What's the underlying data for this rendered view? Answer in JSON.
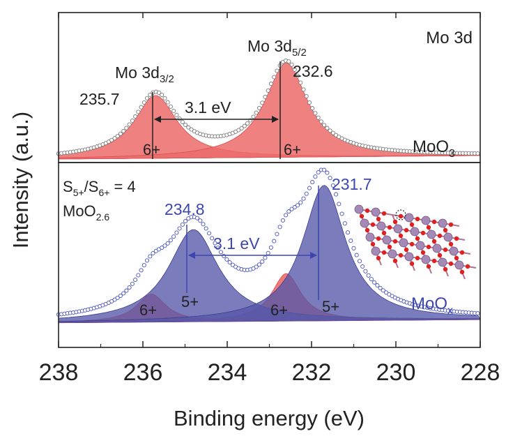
{
  "chart_data": {
    "type": "line",
    "panel_label": "Mo 3d",
    "xlabel": "Binding energy (eV)",
    "ylabel": "Intensity (a.u.)",
    "xlim": [
      238,
      228
    ],
    "xticks": [
      "238",
      "236",
      "234",
      "232",
      "230",
      "228"
    ],
    "tick_values": [
      238,
      236,
      234,
      232,
      230,
      228
    ],
    "grid": false,
    "colors": {
      "red_fill": "#ec6b6b",
      "blue_fill": "#5557a8",
      "blue_text": "#3c45b0",
      "markers": "#7a7a7a",
      "blue_markers": "#4a55c0"
    },
    "top_panel": {
      "sample": "MoO",
      "sample_sub": "3",
      "peaks": [
        {
          "name_main": "Mo 3d",
          "name_sub": "3/2",
          "position": 235.7,
          "position_label": "235.7",
          "state": "6+"
        },
        {
          "name_main": "Mo 3d",
          "name_sub": "5/2",
          "position": 232.6,
          "position_label": "232.6",
          "state": "6+"
        }
      ],
      "splitting_label": "3.1 eV"
    },
    "bottom_panel": {
      "sample": "MoO",
      "sample_sub": "x",
      "ratio_text": {
        "a": "S",
        "a_sub": "5+",
        "sep": "/S",
        "b_sub": "6+",
        "value": " = 4"
      },
      "composition": {
        "main": "MoO",
        "sub": "2.6"
      },
      "peaks_5plus": [
        {
          "position": 234.8,
          "position_label": "234.8",
          "state": "5+"
        },
        {
          "position": 231.7,
          "position_label": "231.7",
          "state": "5+"
        }
      ],
      "peaks_6plus": [
        {
          "position": 235.8,
          "state": "6+"
        },
        {
          "position": 232.6,
          "state": "6+"
        }
      ],
      "splitting_label": "3.1 eV"
    }
  }
}
